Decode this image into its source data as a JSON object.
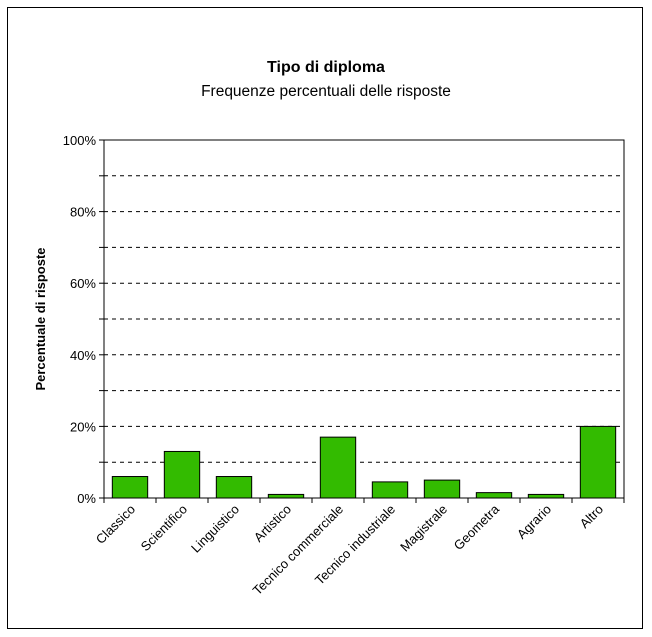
{
  "chart_data": {
    "type": "bar",
    "title": "Tipo di diploma",
    "subtitle": "Frequenze percentuali delle risposte",
    "xlabel": "",
    "ylabel": "Percentuale di risposte",
    "ylim": [
      0,
      100
    ],
    "y_ticks": [
      "0%",
      "20%",
      "40%",
      "60%",
      "80%",
      "100%"
    ],
    "grid": true,
    "categories": [
      "Classico",
      "Scientifico",
      "Linguistico",
      "Artistico",
      "Tecnico commerciale",
      "Tecnico industriale",
      "Magistrale",
      "Geometra",
      "Agrario",
      "Altro"
    ],
    "values": [
      6,
      13,
      6,
      1,
      17,
      4.5,
      5,
      1.5,
      1,
      20
    ],
    "bar_color": "#33bb00"
  }
}
